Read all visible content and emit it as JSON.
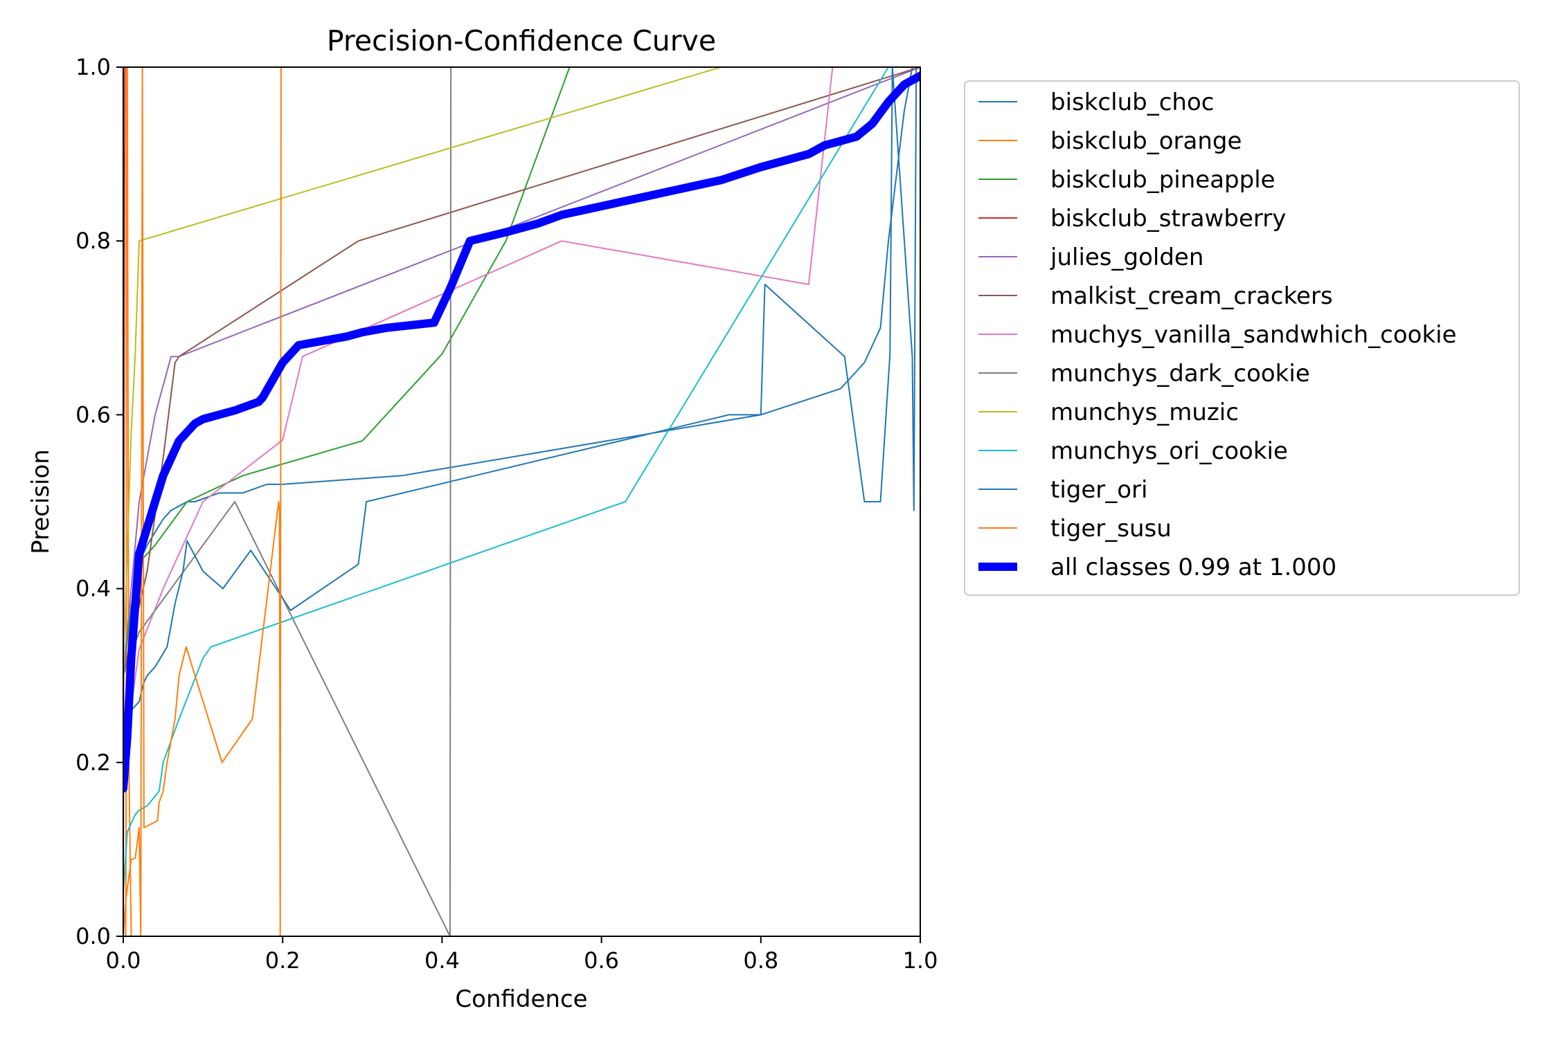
{
  "chart_data": {
    "type": "line",
    "title": "Precision-Confidence Curve",
    "xlabel": "Confidence",
    "ylabel": "Precision",
    "xlim": [
      0,
      1
    ],
    "ylim": [
      0,
      1
    ],
    "xticks": [
      "0.0",
      "0.2",
      "0.4",
      "0.6",
      "0.8",
      "1.0"
    ],
    "yticks": [
      "0.0",
      "0.2",
      "0.4",
      "0.6",
      "0.8",
      "1.0"
    ],
    "grid": false,
    "legend_position": "outside-right",
    "series": [
      {
        "name": "biskclub_choc",
        "color": "#1f77b4",
        "width": 1,
        "x": [
          0.0,
          0.005,
          0.01,
          0.02,
          0.03,
          0.05,
          0.06,
          0.08,
          0.09,
          0.12,
          0.15,
          0.18,
          0.2,
          0.35,
          0.8,
          0.9,
          0.93,
          0.95,
          0.96,
          0.98,
          0.99,
          1.0
        ],
        "y": [
          0.2,
          0.25,
          0.32,
          0.43,
          0.45,
          0.48,
          0.49,
          0.5,
          0.5,
          0.51,
          0.51,
          0.52,
          0.52,
          0.53,
          0.6,
          0.63,
          0.66,
          0.7,
          0.8,
          0.95,
          1.0,
          1.0
        ]
      },
      {
        "name": "biskclub_orange",
        "color": "#ff7f0e",
        "width": 1,
        "x": [
          0.003,
          0.004,
          0.004,
          0.005,
          0.007,
          0.01
        ],
        "y": [
          0.0,
          0.3,
          1.0,
          1.0,
          0.2,
          0.0
        ]
      },
      {
        "name": "biskclub_pineapple",
        "color": "#2ca02c",
        "width": 1,
        "x": [
          0.0,
          0.01,
          0.02,
          0.04,
          0.08,
          0.15,
          0.3,
          0.4,
          0.48,
          0.52,
          0.56
        ],
        "y": [
          0.3,
          0.38,
          0.43,
          0.45,
          0.5,
          0.53,
          0.57,
          0.67,
          0.8,
          0.9,
          1.0
        ]
      },
      {
        "name": "biskclub_strawberry",
        "color": "#d62728",
        "width": 1,
        "x": [
          0.0,
          0.001,
          0.002,
          0.003,
          0.004
        ],
        "y": [
          0.0,
          0.6,
          1.0,
          1.0,
          1.0
        ]
      },
      {
        "name": "julies_golden",
        "color": "#9467bd",
        "width": 1,
        "x": [
          0.0,
          0.02,
          0.04,
          0.06,
          0.07,
          1.0
        ],
        "y": [
          0.3,
          0.5,
          0.6,
          0.667,
          0.667,
          1.0
        ]
      },
      {
        "name": "malkist_cream_crackers",
        "color": "#8c564b",
        "width": 1,
        "x": [
          0.0,
          0.03,
          0.05,
          0.065,
          0.07,
          0.295,
          1.0
        ],
        "y": [
          0.3,
          0.42,
          0.55,
          0.66,
          0.667,
          0.8,
          1.0
        ]
      },
      {
        "name": "muchys_vanilla_sandwhich_cookie",
        "color": "#e377c2",
        "width": 1,
        "x": [
          0.0,
          0.02,
          0.05,
          0.1,
          0.2,
          0.225,
          0.55,
          0.86,
          0.89,
          0.9
        ],
        "y": [
          0.2,
          0.33,
          0.4,
          0.5,
          0.571,
          0.667,
          0.8,
          0.75,
          1.0,
          1.0
        ]
      },
      {
        "name": "munchys_dark_cookie",
        "color": "#7f7f7f",
        "width": 1,
        "x": [
          0.0,
          0.02,
          0.14,
          0.41,
          0.411,
          0.412
        ],
        "y": [
          0.3,
          0.35,
          0.5,
          0.0,
          1.0,
          1.0
        ]
      },
      {
        "name": "munchys_muzic",
        "color": "#bcbd22",
        "width": 1,
        "x": [
          0.0,
          0.01,
          0.015,
          0.02,
          0.75
        ],
        "y": [
          0.3,
          0.58,
          0.67,
          0.8,
          1.0
        ]
      },
      {
        "name": "munchys_ori_cookie",
        "color": "#17becf",
        "width": 1,
        "x": [
          0.0,
          0.005,
          0.01,
          0.015,
          0.02,
          0.03,
          0.045,
          0.05,
          0.07,
          0.1,
          0.11,
          0.63,
          0.96,
          0.97
        ],
        "y": [
          0.05,
          0.12,
          0.13,
          0.14,
          0.145,
          0.15,
          0.167,
          0.2,
          0.25,
          0.32,
          0.333,
          0.5,
          1.0,
          1.0
        ]
      },
      {
        "name": "tiger_ori",
        "color": "#1f77b4",
        "width": 1,
        "x": [
          0.0,
          0.01,
          0.02,
          0.025,
          0.03,
          0.04,
          0.055,
          0.065,
          0.075,
          0.08,
          0.1,
          0.125,
          0.16,
          0.21,
          0.295,
          0.305,
          0.76,
          0.8,
          0.805,
          0.905,
          0.93,
          0.932,
          0.95,
          0.962,
          0.965,
          0.99,
          0.992,
          0.995
        ],
        "y": [
          0.25,
          0.26,
          0.27,
          0.29,
          0.3,
          0.31,
          0.333,
          0.383,
          0.42,
          0.455,
          0.42,
          0.4,
          0.444,
          0.375,
          0.428,
          0.5,
          0.6,
          0.6,
          0.75,
          0.667,
          0.5,
          0.5,
          0.5,
          0.67,
          1.0,
          0.667,
          0.49,
          1.0
        ]
      },
      {
        "name": "tiger_susu",
        "color": "#ff7f0e",
        "width": 1,
        "x": [
          0.0,
          0.003,
          0.005,
          0.01,
          0.015,
          0.02,
          0.022,
          0.024,
          0.026,
          0.043,
          0.045,
          0.05,
          0.055,
          0.065,
          0.07,
          0.079,
          0.09,
          0.124,
          0.162,
          0.195,
          0.196,
          0.197,
          0.198
        ],
        "y": [
          0.0,
          0.04,
          0.055,
          0.088,
          0.09,
          0.125,
          0.0,
          1.0,
          0.125,
          0.133,
          0.154,
          0.167,
          0.2,
          0.25,
          0.3,
          0.333,
          0.3,
          0.2,
          0.25,
          0.5,
          0.49,
          0.0,
          1.0
        ]
      },
      {
        "name": "all classes 0.99 at 1.000",
        "color": "#0000ff",
        "width": 6,
        "x": [
          0.0,
          0.005,
          0.01,
          0.02,
          0.03,
          0.04,
          0.05,
          0.06,
          0.07,
          0.08,
          0.09,
          0.1,
          0.12,
          0.14,
          0.17,
          0.175,
          0.2,
          0.22,
          0.25,
          0.28,
          0.3,
          0.33,
          0.38,
          0.39,
          0.41,
          0.435,
          0.48,
          0.52,
          0.55,
          0.6,
          0.65,
          0.7,
          0.75,
          0.8,
          0.82,
          0.84,
          0.86,
          0.88,
          0.9,
          0.92,
          0.94,
          0.96,
          0.98,
          1.0
        ],
        "y": [
          0.17,
          0.23,
          0.32,
          0.44,
          0.47,
          0.5,
          0.53,
          0.55,
          0.57,
          0.58,
          0.59,
          0.595,
          0.6,
          0.605,
          0.615,
          0.62,
          0.66,
          0.68,
          0.685,
          0.69,
          0.695,
          0.7,
          0.705,
          0.706,
          0.745,
          0.8,
          0.81,
          0.82,
          0.83,
          0.84,
          0.85,
          0.86,
          0.87,
          0.885,
          0.89,
          0.895,
          0.9,
          0.91,
          0.915,
          0.92,
          0.935,
          0.96,
          0.98,
          0.99
        ]
      }
    ]
  }
}
